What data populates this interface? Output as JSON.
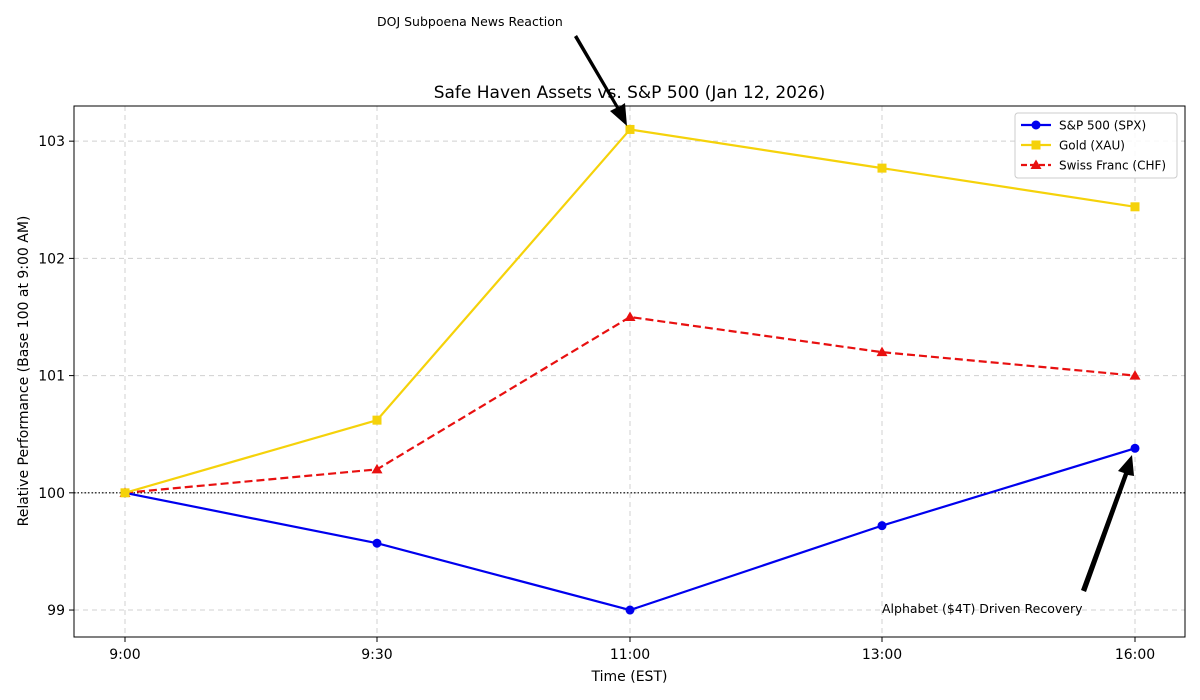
{
  "chart_data": {
    "type": "line",
    "title": "Safe Haven Assets vs. S&P 500 (Jan 12, 2026)",
    "xlabel": "Time (EST)",
    "ylabel": "Relative Performance (Base 100 at 9:00 AM)",
    "categories": [
      "9:00",
      "9:30",
      "11:00",
      "13:00",
      "16:00"
    ],
    "ylim": [
      98.77,
      103.3
    ],
    "yticks": [
      99,
      100,
      101,
      102,
      103
    ],
    "yticks_labels": [
      "99",
      "100",
      "101",
      "102",
      "103"
    ],
    "grid": true,
    "legend_position": "top-right",
    "reference_line": {
      "y": 100,
      "style": "dotted",
      "color": "#000000"
    },
    "series": [
      {
        "name": "S&P 500 (SPX)",
        "values": [
          100.0,
          99.57,
          99.0,
          99.72,
          100.38
        ],
        "color": "#0000ee",
        "marker": "circle",
        "dash": "solid"
      },
      {
        "name": "Gold (XAU)",
        "values": [
          100.0,
          100.62,
          103.1,
          102.77,
          102.44
        ],
        "color": "#f5d20a",
        "marker": "square",
        "dash": "solid"
      },
      {
        "name": "Swiss Franc (CHF)",
        "values": [
          100.0,
          100.2,
          101.5,
          101.2,
          101.0
        ],
        "color": "#e81010",
        "marker": "triangle",
        "dash": "dashed"
      }
    ],
    "annotations": [
      {
        "text": "DOJ Subpoena News Reaction",
        "x": "11:00",
        "y": 103.1
      },
      {
        "text": "Alphabet ($4T) Driven Recovery",
        "x": "16:00",
        "y": 100.38
      }
    ]
  }
}
